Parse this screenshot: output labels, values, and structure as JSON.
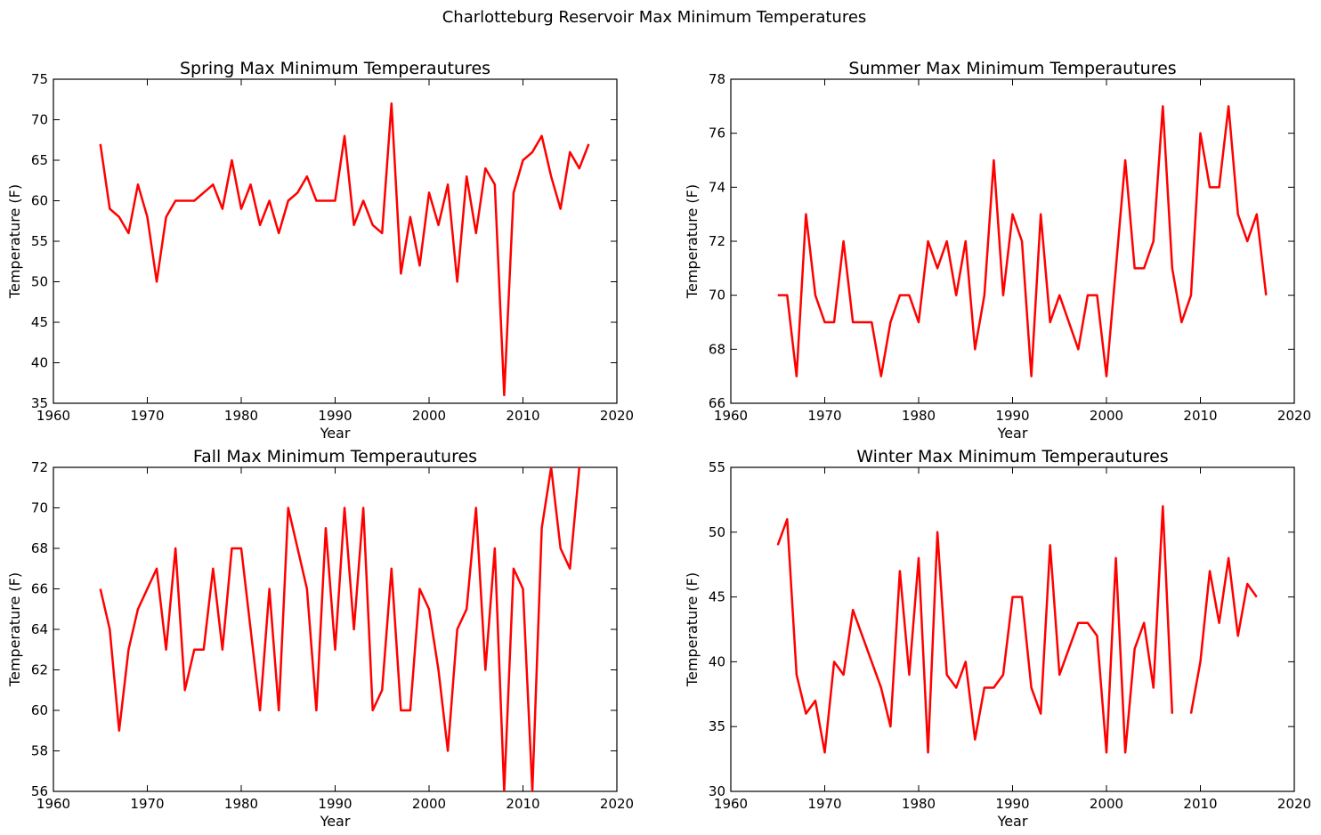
{
  "figure": {
    "title": "Charlotteburg Reservoir Max Minimum Temperatures"
  },
  "colors": {
    "series": "#ff0000",
    "axes": "#000000",
    "background": "#ffffff"
  },
  "chart_data": [
    {
      "type": "line",
      "title": "Spring Max Minimum Temperautures",
      "xlabel": "Year",
      "ylabel": "Temperature (F)",
      "xlim": [
        1960,
        2020
      ],
      "ylim": [
        35,
        75
      ],
      "xticks": [
        1960,
        1970,
        1980,
        1990,
        2000,
        2010,
        2020
      ],
      "yticks": [
        35,
        40,
        45,
        50,
        55,
        60,
        65,
        70,
        75
      ],
      "grid": false,
      "series": [
        {
          "color": "#ff0000",
          "x": [
            1965,
            1966,
            1967,
            1968,
            1969,
            1970,
            1971,
            1972,
            1973,
            1974,
            1975,
            1976,
            1977,
            1978,
            1979,
            1980,
            1981,
            1982,
            1983,
            1984,
            1985,
            1986,
            1987,
            1988,
            1989,
            1990,
            1991,
            1992,
            1993,
            1994,
            1995,
            1996,
            1997,
            1998,
            1999,
            2000,
            2001,
            2002,
            2003,
            2004,
            2005,
            2006,
            2007,
            2008,
            2009,
            2010,
            2011,
            2012,
            2013,
            2014,
            2015,
            2016,
            2017
          ],
          "values": [
            67,
            59,
            58,
            56,
            62,
            58,
            50,
            58,
            60,
            60,
            60,
            61,
            62,
            59,
            65,
            59,
            62,
            57,
            60,
            56,
            60,
            61,
            63,
            60,
            60,
            60,
            68,
            57,
            60,
            57,
            56,
            72,
            51,
            58,
            52,
            61,
            57,
            62,
            50,
            63,
            56,
            64,
            62,
            36,
            61,
            65,
            66,
            68,
            63,
            59,
            66,
            64,
            67
          ]
        }
      ]
    },
    {
      "type": "line",
      "title": "Summer Max Minimum Temperautures",
      "xlabel": "Year",
      "ylabel": "Temperature (F)",
      "xlim": [
        1960,
        2020
      ],
      "ylim": [
        66,
        78
      ],
      "xticks": [
        1960,
        1970,
        1980,
        1990,
        2000,
        2010,
        2020
      ],
      "yticks": [
        66,
        68,
        70,
        72,
        74,
        76,
        78
      ],
      "grid": false,
      "series": [
        {
          "color": "#ff0000",
          "x": [
            1965,
            1966,
            1967,
            1968,
            1969,
            1970,
            1971,
            1972,
            1973,
            1974,
            1975,
            1976,
            1977,
            1978,
            1979,
            1980,
            1981,
            1982,
            1983,
            1984,
            1985,
            1986,
            1987,
            1988,
            1989,
            1990,
            1991,
            1992,
            1993,
            1994,
            1995,
            1997,
            1998,
            1999,
            2000,
            2002,
            2003,
            2004,
            2005,
            2006,
            2007,
            2008,
            2009,
            2010,
            2011,
            2012,
            2013,
            2014,
            2015,
            2016,
            2017
          ],
          "values": [
            70,
            70,
            67,
            73,
            70,
            69,
            69,
            72,
            69,
            69,
            69,
            67,
            69,
            70,
            70,
            69,
            72,
            71,
            72,
            70,
            72,
            68,
            70,
            75,
            70,
            73,
            72,
            67,
            73,
            69,
            70,
            68,
            70,
            70,
            67,
            75,
            71,
            71,
            72,
            77,
            71,
            69,
            70,
            76,
            74,
            74,
            77,
            73,
            72,
            73,
            70
          ]
        }
      ]
    },
    {
      "type": "line",
      "title": "Fall Max Minimum Temperautures",
      "xlabel": "Year",
      "ylabel": "Temperature (F)",
      "xlim": [
        1960,
        2020
      ],
      "ylim": [
        56,
        72
      ],
      "xticks": [
        1960,
        1970,
        1980,
        1990,
        2000,
        2010,
        2020
      ],
      "yticks": [
        56,
        58,
        60,
        62,
        64,
        66,
        68,
        70,
        72
      ],
      "grid": false,
      "series": [
        {
          "color": "#ff0000",
          "x": [
            1965,
            1966,
            1967,
            1968,
            1969,
            1971,
            1972,
            1973,
            1974,
            1975,
            1976,
            1977,
            1978,
            1979,
            1980,
            1982,
            1983,
            1984,
            1985,
            1987,
            1988,
            1989,
            1990,
            1991,
            1992,
            1993,
            1994,
            1995,
            1996,
            1997,
            1998,
            1999,
            2000,
            2001,
            2002,
            2003,
            2004,
            2005,
            2006,
            2007,
            2008,
            2009,
            2010,
            2011,
            2012,
            2013,
            2014,
            2015,
            2016
          ],
          "values": [
            66,
            64,
            59,
            63,
            65,
            67,
            63,
            68,
            61,
            63,
            63,
            67,
            63,
            68,
            68,
            60,
            66,
            60,
            70,
            66,
            60,
            69,
            63,
            70,
            64,
            70,
            60,
            61,
            67,
            60,
            60,
            66,
            65,
            62,
            58,
            64,
            65,
            70,
            62,
            68,
            56,
            67,
            66,
            56,
            69,
            72,
            68,
            67,
            72
          ]
        }
      ]
    },
    {
      "type": "line",
      "title": "Winter Max Minimum Temperautures",
      "xlabel": "Year",
      "ylabel": "Temperature (F)",
      "xlim": [
        1960,
        2020
      ],
      "ylim": [
        30,
        55
      ],
      "xticks": [
        1960,
        1970,
        1980,
        1990,
        2000,
        2010,
        2020
      ],
      "yticks": [
        30,
        35,
        40,
        45,
        50,
        55
      ],
      "grid": false,
      "series": [
        {
          "color": "#ff0000",
          "x": [
            1965,
            1966,
            1967,
            1968,
            1969,
            1970,
            1971,
            1972,
            1973,
            1976,
            1977,
            1978,
            1979,
            1980,
            1981,
            1982,
            1983,
            1984,
            1985,
            1986,
            1987,
            1988,
            1989,
            1990,
            1991,
            1992,
            1993,
            1994,
            1995,
            1997,
            1998,
            1999,
            2000,
            2001,
            2002,
            2003,
            2004,
            2005,
            2006,
            2007
          ],
          "values": [
            49,
            51,
            39,
            36,
            37,
            33,
            40,
            39,
            44,
            38,
            35,
            47,
            39,
            48,
            33,
            50,
            39,
            38,
            40,
            34,
            38,
            38,
            39,
            45,
            45,
            38,
            36,
            49,
            39,
            43,
            43,
            42,
            33,
            48,
            33,
            41,
            43,
            38,
            52,
            36
          ]
        },
        {
          "color": "#ff0000",
          "x": [
            2009,
            2010,
            2011,
            2012,
            2013,
            2014,
            2015,
            2016
          ],
          "values": [
            36,
            40,
            47,
            43,
            48,
            42,
            46,
            45
          ]
        }
      ]
    }
  ]
}
